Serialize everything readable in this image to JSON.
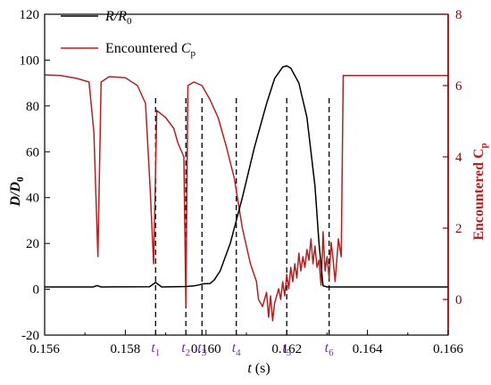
{
  "chart_data": {
    "type": "line",
    "x_axis": {
      "label_italic": "t",
      "label_rest": " (s)",
      "range": [
        0.156,
        0.166
      ],
      "ticks": [
        0.156,
        0.158,
        0.16,
        0.162,
        0.164,
        0.166
      ],
      "tick_labels": [
        "0.156",
        "0.158",
        "0.160",
        "0.162",
        "0.164",
        "0.166"
      ]
    },
    "y_left": {
      "label_main": "D/D",
      "label_sub": "0",
      "range": [
        -20,
        120
      ],
      "ticks": [
        -20,
        0,
        20,
        40,
        60,
        80,
        100,
        120
      ],
      "tick_labels": [
        "-20",
        "0",
        "20",
        "40",
        "60",
        "80",
        "100",
        "120"
      ]
    },
    "y_right": {
      "label_main": "Encountered C",
      "label_sub": "p",
      "range": [
        -1,
        8
      ],
      "ticks": [
        0,
        2,
        4,
        6,
        8
      ],
      "tick_labels": [
        "0",
        "2",
        "4",
        "6",
        "8"
      ]
    },
    "legend": {
      "placement": "top-left",
      "entries": [
        {
          "label_main": "R/R",
          "label_sub": "0",
          "color": "#000000"
        },
        {
          "label_main": "Encountered ",
          "label_italic": "C",
          "label_sub": "p",
          "color": "#b22222"
        }
      ]
    },
    "series": [
      {
        "name": "R/R0",
        "axis": "left",
        "color": "#000000",
        "points": [
          [
            0.156,
            1.0
          ],
          [
            0.1572,
            1.0
          ],
          [
            0.1573,
            1.6
          ],
          [
            0.1574,
            1.0
          ],
          [
            0.1586,
            1.1
          ],
          [
            0.15875,
            3.0
          ],
          [
            0.1589,
            1.0
          ],
          [
            0.1595,
            1.2
          ],
          [
            0.1597,
            1.5
          ],
          [
            0.1598,
            1.8
          ],
          [
            0.15995,
            2.4
          ],
          [
            0.1601,
            2.5
          ],
          [
            0.1602,
            4.0
          ],
          [
            0.16035,
            8.0
          ],
          [
            0.1606,
            20.0
          ],
          [
            0.1609,
            40.0
          ],
          [
            0.1612,
            62.0
          ],
          [
            0.1615,
            81.0
          ],
          [
            0.1617,
            92.0
          ],
          [
            0.1619,
            97.0
          ],
          [
            0.162,
            97.5
          ],
          [
            0.1621,
            96.5
          ],
          [
            0.1623,
            90.0
          ],
          [
            0.1625,
            75.0
          ],
          [
            0.1627,
            45.0
          ],
          [
            0.1628,
            20.0
          ],
          [
            0.1629,
            1.5
          ],
          [
            0.163,
            1.0
          ],
          [
            0.166,
            1.0
          ]
        ]
      },
      {
        "name": "Encountered Cp",
        "axis": "right",
        "color": "#b22222",
        "points": [
          [
            0.156,
            6.3
          ],
          [
            0.1564,
            6.28
          ],
          [
            0.1568,
            6.2
          ],
          [
            0.1571,
            6.1
          ],
          [
            0.15722,
            4.7
          ],
          [
            0.15732,
            1.2
          ],
          [
            0.1574,
            6.1
          ],
          [
            0.1576,
            6.25
          ],
          [
            0.158,
            6.22
          ],
          [
            0.1583,
            6.0
          ],
          [
            0.1585,
            5.5
          ],
          [
            0.15862,
            3.0
          ],
          [
            0.1587,
            1.0
          ],
          [
            0.15878,
            5.3
          ],
          [
            0.159,
            5.1
          ],
          [
            0.1592,
            4.8
          ],
          [
            0.1593,
            4.4
          ],
          [
            0.15945,
            4.0
          ],
          [
            0.1595,
            -0.2
          ],
          [
            0.15955,
            6.0
          ],
          [
            0.1597,
            6.1
          ],
          [
            0.1599,
            6.0
          ],
          [
            0.1601,
            5.6
          ],
          [
            0.1603,
            5.1
          ],
          [
            0.1605,
            4.3
          ],
          [
            0.1607,
            3.4
          ],
          [
            0.1609,
            2.0
          ],
          [
            0.1611,
            1.0
          ],
          [
            0.16125,
            0.5
          ],
          [
            0.1613,
            0.0
          ],
          [
            0.1614,
            -0.2
          ],
          [
            0.1615,
            0.2
          ],
          [
            0.16155,
            -0.5
          ],
          [
            0.1616,
            0.1
          ],
          [
            0.16165,
            -0.6
          ],
          [
            0.1617,
            -0.1
          ],
          [
            0.1618,
            0.3
          ],
          [
            0.16185,
            0.0
          ],
          [
            0.1619,
            0.5
          ],
          [
            0.16195,
            0.1
          ],
          [
            0.162,
            0.7
          ],
          [
            0.16205,
            0.3
          ],
          [
            0.1621,
            0.9
          ],
          [
            0.16215,
            0.5
          ],
          [
            0.1622,
            1.0
          ],
          [
            0.16225,
            0.6
          ],
          [
            0.1623,
            1.3
          ],
          [
            0.16235,
            0.8
          ],
          [
            0.1624,
            1.2
          ],
          [
            0.16245,
            0.9
          ],
          [
            0.1625,
            1.4
          ],
          [
            0.16255,
            1.1
          ],
          [
            0.1626,
            1.7
          ],
          [
            0.16265,
            1.0
          ],
          [
            0.1627,
            1.5
          ],
          [
            0.16275,
            0.9
          ],
          [
            0.1628,
            1.1
          ],
          [
            0.16285,
            0.4
          ],
          [
            0.16288,
            1.2
          ],
          [
            0.1629,
            1.9
          ],
          [
            0.16295,
            0.8
          ],
          [
            0.163,
            1.2
          ],
          [
            0.16305,
            0.6
          ],
          [
            0.1631,
            1.6
          ],
          [
            0.16315,
            1.1
          ],
          [
            0.1632,
            0.5
          ],
          [
            0.16328,
            1.7
          ],
          [
            0.16335,
            1.2
          ],
          [
            0.1634,
            6.28
          ],
          [
            0.166,
            6.28
          ]
        ]
      }
    ],
    "annotations": [
      {
        "label": "t",
        "sub": "1",
        "x": 0.15875
      },
      {
        "label": "t",
        "sub": "2",
        "x": 0.1595
      },
      {
        "label": "t",
        "sub": "3",
        "x": 0.1599
      },
      {
        "label": "t",
        "sub": "4",
        "x": 0.16075
      },
      {
        "label": "t",
        "sub": "5",
        "x": 0.162
      },
      {
        "label": "t",
        "sub": "6",
        "x": 0.16305
      }
    ],
    "annotation_color": "#7030a0",
    "grid": false
  }
}
